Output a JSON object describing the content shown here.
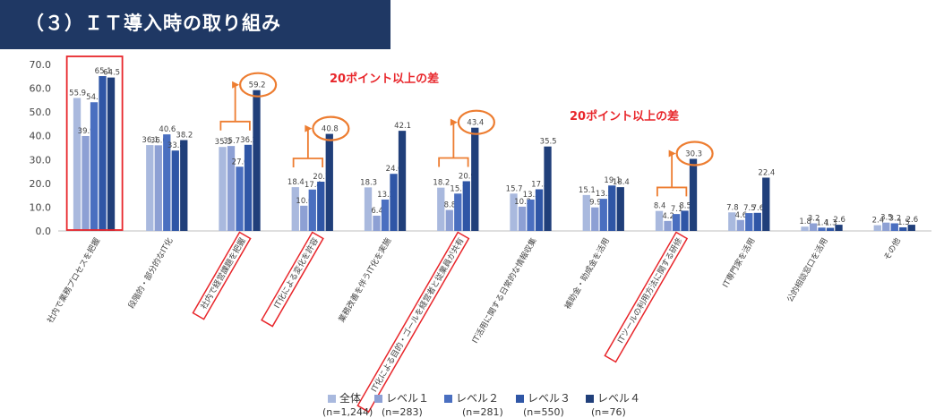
{
  "header": {
    "title": "（３）ＩＴ導入時の取り組み"
  },
  "annotations": {
    "diff_label_1": "20ポイント以上の差",
    "diff_label_2": "20ポイント以上の差"
  },
  "colors": {
    "header_bg": "#1f3864",
    "series": [
      "#a9b9de",
      "#8da0d4",
      "#4a6fc0",
      "#2f56a6",
      "#203f7a"
    ],
    "highlight_box": "#e8262b",
    "callout": "#ed7d31",
    "annotation_text": "#e8262b"
  },
  "legend": {
    "labels": [
      "全体",
      "レベル１",
      "レベル２",
      "レベル３",
      "レベル４"
    ],
    "counts": [
      "(n=1,244)",
      "(n=283)",
      "(n=281)",
      "(n=550)",
      "(n=76)"
    ]
  },
  "chart_data": {
    "type": "bar",
    "ylim": [
      0,
      70
    ],
    "yticks": [
      "0.0",
      "10.0",
      "20.0",
      "30.0",
      "40.0",
      "50.0",
      "60.0",
      "70.0"
    ],
    "grid": false,
    "legend_position": "bottom",
    "categories": [
      "社内で業務プロセスを把握",
      "段階的・部分的なIT化",
      "社内で経営課題を把握",
      "IT化による変化を許容",
      "業務改善を伴うIT化を実施",
      "IT化による目的・ゴールを経営者と従業員が共有",
      "IT活用に関する日常的な情報収集",
      "補助金・助成金を活用",
      "ITツールの利用方法に関する研修",
      "IT専門家を活用",
      "公的相談窓口を活用",
      "その他"
    ],
    "series": [
      {
        "name": "全体",
        "values": [
          55.9,
          36.1,
          35.3,
          18.4,
          18.3,
          18.2,
          15.7,
          15.1,
          8.4,
          7.8,
          1.8,
          2.4
        ]
      },
      {
        "name": "レベル１",
        "values": [
          39.9,
          36.0,
          35.7,
          10.6,
          6.4,
          8.8,
          10.2,
          9.9,
          4.2,
          4.6,
          3.2,
          3.5
        ]
      },
      {
        "name": "レベル２",
        "values": [
          54.1,
          40.6,
          27.0,
          17.4,
          13.2,
          15.7,
          13.2,
          13.5,
          7.1,
          7.5,
          1.4,
          3.2
        ]
      },
      {
        "name": "レベル３",
        "values": [
          65.1,
          33.8,
          36.2,
          20.7,
          24.0,
          20.9,
          17.5,
          19.1,
          8.5,
          7.6,
          1.3,
          1.5
        ]
      },
      {
        "name": "レベル４",
        "values": [
          64.5,
          38.2,
          59.2,
          40.8,
          42.1,
          43.4,
          35.5,
          18.4,
          30.3,
          22.4,
          2.6,
          2.6
        ]
      }
    ],
    "highlighted_categories": [
      0,
      2,
      3,
      5,
      8
    ],
    "circled_values": [
      {
        "category": 2,
        "value": "59.2"
      },
      {
        "category": 3,
        "value": "40.8"
      },
      {
        "category": 5,
        "value": "43.4"
      },
      {
        "category": 8,
        "value": "30.3"
      }
    ]
  }
}
